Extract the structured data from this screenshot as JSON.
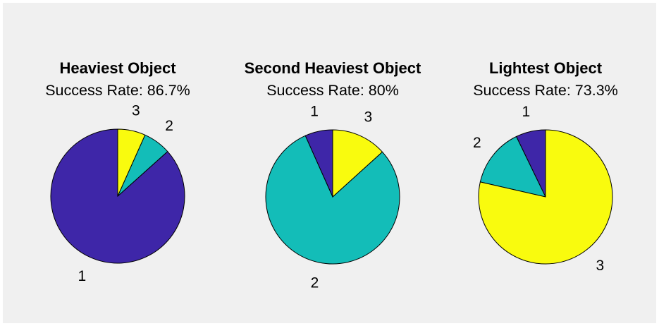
{
  "chart_data": [
    {
      "type": "pie",
      "title": "Heaviest Object",
      "subtitle": "Success Rate: 86.7%",
      "labels": [
        "1",
        "2",
        "3"
      ],
      "values": [
        86.7,
        6.7,
        6.7
      ],
      "colors": [
        "#3e26a8",
        "#13bdb8",
        "#f9fb0e"
      ]
    },
    {
      "type": "pie",
      "title": "Second Heaviest Object",
      "subtitle": "Success Rate: 80%",
      "labels": [
        "1",
        "2",
        "3"
      ],
      "values": [
        6.7,
        80,
        13.3
      ],
      "colors": [
        "#3e26a8",
        "#13bdb8",
        "#f9fb0e"
      ]
    },
    {
      "type": "pie",
      "title": "Lightest Object",
      "subtitle": "Success Rate: 73.3%",
      "labels": [
        "1",
        "2",
        "3"
      ],
      "values": [
        6.7,
        13.3,
        73.3
      ],
      "colors": [
        "#3e26a8",
        "#13bdb8",
        "#f9fb0e"
      ]
    }
  ]
}
